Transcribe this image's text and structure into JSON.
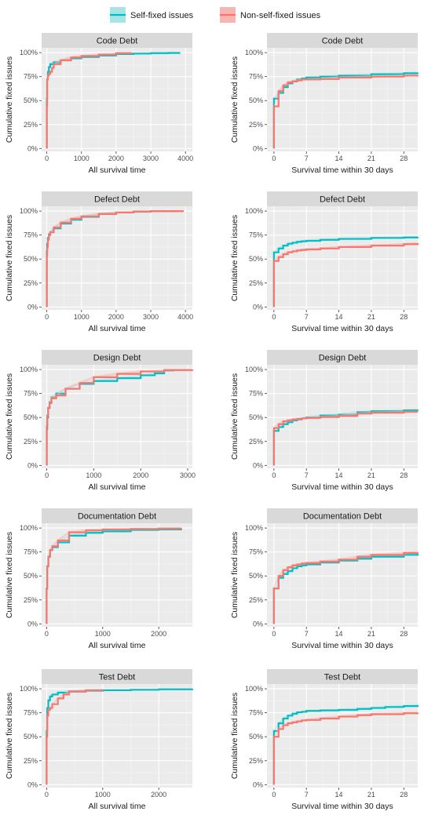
{
  "legend": {
    "entries": [
      {
        "label": "Self-fixed issues",
        "color": "#00BFC4",
        "fill": "#A6E4E6"
      },
      {
        "label": "Non-self-fixed issues",
        "color": "#F8766D",
        "fill": "#F7B6B1"
      }
    ]
  },
  "chart_data": [
    {
      "type": "line",
      "title": "Code Debt",
      "xlabel": "All survival time",
      "ylabel": "Cumulative fixed issues",
      "xlim": [
        -150,
        4200
      ],
      "xticks": [
        0,
        1000,
        2000,
        3000,
        4000
      ],
      "ylim": [
        -0.03,
        1.05
      ],
      "yticks": [
        0,
        0.25,
        0.5,
        0.75,
        1
      ],
      "ytick_labels": [
        "0%",
        "25%",
        "50%",
        "75%",
        "100%"
      ],
      "series": [
        {
          "name": "Self-fixed issues",
          "x": [
            0,
            0,
            10,
            30,
            60,
            100,
            200,
            400,
            700,
            1000,
            1500,
            2000,
            2500,
            3000,
            3500,
            3850
          ],
          "y": [
            0,
            0.52,
            0.72,
            0.8,
            0.85,
            0.88,
            0.9,
            0.92,
            0.94,
            0.955,
            0.97,
            0.985,
            0.99,
            0.995,
            0.997,
            0.997
          ]
        },
        {
          "name": "Non-self-fixed issues",
          "x": [
            0,
            0,
            10,
            30,
            60,
            100,
            150,
            200,
            400,
            700,
            1000,
            1500,
            2000,
            2450
          ],
          "y": [
            0,
            0.45,
            0.72,
            0.76,
            0.78,
            0.8,
            0.84,
            0.88,
            0.92,
            0.95,
            0.965,
            0.98,
            0.995,
            1.0
          ]
        }
      ]
    },
    {
      "type": "line",
      "title": "Code Debt",
      "xlabel": "Survival time within 30 days",
      "ylabel": "Cumulative fixed issues",
      "xlim": [
        -1.5,
        31
      ],
      "xticks": [
        0,
        7,
        14,
        21,
        28
      ],
      "ylim": [
        -0.03,
        1.05
      ],
      "yticks": [
        0,
        0.25,
        0.5,
        0.75,
        1
      ],
      "ytick_labels": [
        "0%",
        "25%",
        "50%",
        "75%",
        "100%"
      ],
      "series": [
        {
          "name": "Self-fixed issues",
          "x": [
            0,
            0,
            1,
            2,
            3,
            4,
            5,
            6,
            7,
            10,
            14,
            21,
            28,
            31
          ],
          "y": [
            0,
            0.52,
            0.58,
            0.64,
            0.68,
            0.7,
            0.72,
            0.73,
            0.74,
            0.75,
            0.76,
            0.775,
            0.785,
            0.79
          ]
        },
        {
          "name": "Non-self-fixed issues",
          "x": [
            0,
            0,
            1,
            2,
            3,
            4,
            5,
            6,
            7,
            10,
            14,
            21,
            28,
            31
          ],
          "y": [
            0,
            0.44,
            0.6,
            0.66,
            0.69,
            0.7,
            0.71,
            0.72,
            0.72,
            0.725,
            0.74,
            0.75,
            0.76,
            0.765
          ]
        }
      ]
    },
    {
      "type": "line",
      "title": "Defect Debt",
      "xlabel": "All survival time",
      "ylabel": "Cumulative fixed issues",
      "xlim": [
        -150,
        4200
      ],
      "xticks": [
        0,
        1000,
        2000,
        3000,
        4000
      ],
      "ylim": [
        -0.03,
        1.05
      ],
      "yticks": [
        0,
        0.25,
        0.5,
        0.75,
        1
      ],
      "ytick_labels": [
        "0%",
        "25%",
        "50%",
        "75%",
        "100%"
      ],
      "series": [
        {
          "name": "Self-fixed issues",
          "x": [
            0,
            0,
            10,
            30,
            60,
            100,
            200,
            400,
            700,
            1000,
            1500,
            2000,
            2500,
            3000,
            3700
          ],
          "y": [
            0,
            0.58,
            0.66,
            0.72,
            0.76,
            0.78,
            0.82,
            0.87,
            0.91,
            0.94,
            0.97,
            0.985,
            0.995,
            1.0,
            1.0
          ]
        },
        {
          "name": "Non-self-fixed issues",
          "x": [
            0,
            0,
            10,
            30,
            60,
            100,
            200,
            400,
            700,
            1000,
            1500,
            2000,
            2500,
            3000,
            3500,
            3950
          ],
          "y": [
            0,
            0.54,
            0.62,
            0.7,
            0.75,
            0.78,
            0.83,
            0.88,
            0.92,
            0.945,
            0.97,
            0.985,
            0.995,
            1.0,
            1.0,
            1.0
          ]
        }
      ]
    },
    {
      "type": "line",
      "title": "Defect Debt",
      "xlabel": "Survival time within 30 days",
      "ylabel": "Cumulative fixed issues",
      "xlim": [
        -1.5,
        31
      ],
      "xticks": [
        0,
        7,
        14,
        21,
        28
      ],
      "ylim": [
        -0.03,
        1.05
      ],
      "yticks": [
        0,
        0.25,
        0.5,
        0.75,
        1
      ],
      "ytick_labels": [
        "0%",
        "25%",
        "50%",
        "75%",
        "100%"
      ],
      "series": [
        {
          "name": "Self-fixed issues",
          "x": [
            0,
            0,
            1,
            2,
            3,
            4,
            5,
            6,
            7,
            10,
            14,
            21,
            28,
            31
          ],
          "y": [
            0,
            0.57,
            0.61,
            0.64,
            0.66,
            0.67,
            0.68,
            0.685,
            0.69,
            0.7,
            0.71,
            0.72,
            0.725,
            0.73
          ]
        },
        {
          "name": "Non-self-fixed issues",
          "x": [
            0,
            0,
            1,
            2,
            3,
            4,
            5,
            6,
            7,
            10,
            14,
            21,
            28,
            31
          ],
          "y": [
            0,
            0.48,
            0.52,
            0.55,
            0.57,
            0.58,
            0.59,
            0.595,
            0.6,
            0.61,
            0.625,
            0.64,
            0.655,
            0.665
          ]
        }
      ]
    },
    {
      "type": "line",
      "title": "Design Debt",
      "xlabel": "All survival time",
      "ylabel": "Cumulative fixed issues",
      "xlim": [
        -110,
        3100
      ],
      "xticks": [
        0,
        1000,
        2000,
        3000
      ],
      "ylim": [
        -0.03,
        1.05
      ],
      "yticks": [
        0,
        0.25,
        0.5,
        0.75,
        1
      ],
      "ytick_labels": [
        "0%",
        "25%",
        "50%",
        "75%",
        "100%"
      ],
      "series": [
        {
          "name": "Self-fixed issues",
          "x": [
            0,
            0,
            10,
            30,
            60,
            100,
            200,
            400,
            700,
            1000,
            1500,
            2000,
            2300,
            2500,
            2700
          ],
          "y": [
            0,
            0.38,
            0.5,
            0.6,
            0.66,
            0.71,
            0.75,
            0.8,
            0.85,
            0.88,
            0.91,
            0.94,
            0.96,
            0.99,
            1.0
          ]
        },
        {
          "name": "Non-self-fixed issues",
          "x": [
            0,
            0,
            10,
            30,
            60,
            100,
            200,
            400,
            700,
            1000,
            1500,
            2000,
            2500,
            3100
          ],
          "y": [
            0,
            0.41,
            0.52,
            0.6,
            0.65,
            0.7,
            0.73,
            0.8,
            0.86,
            0.92,
            0.955,
            0.98,
            0.995,
            1.0
          ]
        }
      ]
    },
    {
      "type": "line",
      "title": "Design Debt",
      "xlabel": "Survival time within 30 days",
      "ylabel": "Cumulative fixed issues",
      "xlim": [
        -1.5,
        31
      ],
      "xticks": [
        0,
        7,
        14,
        21,
        28
      ],
      "ylim": [
        -0.03,
        1.05
      ],
      "yticks": [
        0,
        0.25,
        0.5,
        0.75,
        1
      ],
      "ytick_labels": [
        "0%",
        "25%",
        "50%",
        "75%",
        "100%"
      ],
      "series": [
        {
          "name": "Self-fixed issues",
          "x": [
            0,
            0,
            1,
            2,
            3,
            4,
            5,
            6,
            7,
            10,
            14,
            18,
            21,
            28,
            31
          ],
          "y": [
            0,
            0.36,
            0.4,
            0.43,
            0.45,
            0.47,
            0.48,
            0.49,
            0.5,
            0.52,
            0.53,
            0.555,
            0.565,
            0.575,
            0.58
          ]
        },
        {
          "name": "Non-self-fixed issues",
          "x": [
            0,
            0,
            1,
            2,
            3,
            4,
            5,
            6,
            7,
            10,
            14,
            18,
            21,
            28,
            31
          ],
          "y": [
            0,
            0.39,
            0.43,
            0.46,
            0.47,
            0.48,
            0.485,
            0.49,
            0.495,
            0.505,
            0.515,
            0.54,
            0.55,
            0.56,
            0.56
          ]
        }
      ]
    },
    {
      "type": "line",
      "title": "Documentation Debt",
      "xlabel": "All survival time",
      "ylabel": "Cumulative fixed issues",
      "xlim": [
        -90,
        2600
      ],
      "xticks": [
        0,
        1000,
        2000
      ],
      "ylim": [
        -0.03,
        1.05
      ],
      "yticks": [
        0,
        0.25,
        0.5,
        0.75,
        1
      ],
      "ytick_labels": [
        "0%",
        "25%",
        "50%",
        "75%",
        "100%"
      ],
      "series": [
        {
          "name": "Self-fixed issues",
          "x": [
            0,
            0,
            10,
            30,
            60,
            100,
            200,
            400,
            700,
            1000,
            1500,
            2000,
            2400
          ],
          "y": [
            0,
            0.37,
            0.6,
            0.7,
            0.77,
            0.8,
            0.85,
            0.92,
            0.95,
            0.965,
            0.98,
            0.985,
            0.99
          ]
        },
        {
          "name": "Non-self-fixed issues",
          "x": [
            0,
            0,
            10,
            30,
            60,
            100,
            200,
            400,
            700,
            1000,
            1500,
            2000,
            2400
          ],
          "y": [
            0,
            0.37,
            0.6,
            0.7,
            0.77,
            0.81,
            0.87,
            0.955,
            0.975,
            0.985,
            0.99,
            0.995,
            1.0
          ]
        }
      ]
    },
    {
      "type": "line",
      "title": "Documentation Debt",
      "xlabel": "Survival time within 30 days",
      "ylabel": "Cumulative fixed issues",
      "xlim": [
        -1.5,
        31
      ],
      "xticks": [
        0,
        7,
        14,
        21,
        28
      ],
      "ylim": [
        -0.03,
        1.05
      ],
      "yticks": [
        0,
        0.25,
        0.5,
        0.75,
        1
      ],
      "ytick_labels": [
        "0%",
        "25%",
        "50%",
        "75%",
        "100%"
      ],
      "series": [
        {
          "name": "Self-fixed issues",
          "x": [
            0,
            0,
            1,
            2,
            3,
            4,
            5,
            6,
            7,
            10,
            14,
            18,
            21,
            28,
            31
          ],
          "y": [
            0,
            0.37,
            0.48,
            0.52,
            0.55,
            0.58,
            0.6,
            0.61,
            0.62,
            0.64,
            0.66,
            0.68,
            0.7,
            0.72,
            0.73
          ]
        },
        {
          "name": "Non-self-fixed issues",
          "x": [
            0,
            0,
            1,
            2,
            3,
            4,
            5,
            6,
            7,
            10,
            14,
            18,
            21,
            28,
            31
          ],
          "y": [
            0,
            0.37,
            0.5,
            0.56,
            0.59,
            0.61,
            0.62,
            0.63,
            0.635,
            0.65,
            0.67,
            0.7,
            0.72,
            0.74,
            0.745
          ]
        }
      ]
    },
    {
      "type": "line",
      "title": "Test Debt",
      "xlabel": "All survival time",
      "ylabel": "Cumulative fixed issues",
      "xlim": [
        -90,
        2600
      ],
      "xticks": [
        0,
        1000,
        2000
      ],
      "ylim": [
        -0.03,
        1.05
      ],
      "yticks": [
        0,
        0.25,
        0.5,
        0.75,
        1
      ],
      "ytick_labels": [
        "0%",
        "25%",
        "50%",
        "75%",
        "100%"
      ],
      "series": [
        {
          "name": "Self-fixed issues",
          "x": [
            0,
            0,
            10,
            30,
            60,
            100,
            200,
            400,
            700,
            1000,
            1500,
            2000,
            2600
          ],
          "y": [
            0,
            0.56,
            0.8,
            0.88,
            0.92,
            0.94,
            0.96,
            0.975,
            0.98,
            0.985,
            0.99,
            0.995,
            1.0
          ]
        },
        {
          "name": "Non-self-fixed issues",
          "x": [
            0,
            0,
            10,
            30,
            60,
            100,
            200,
            300,
            400,
            700,
            1000
          ],
          "y": [
            0,
            0.5,
            0.72,
            0.78,
            0.8,
            0.84,
            0.9,
            0.94,
            0.97,
            0.985,
            0.99
          ]
        }
      ]
    },
    {
      "type": "line",
      "title": "Test Debt",
      "xlabel": "Survival time within 30 days",
      "ylabel": "Cumulative fixed issues",
      "xlim": [
        -1.5,
        31
      ],
      "xticks": [
        0,
        7,
        14,
        21,
        28
      ],
      "ylim": [
        -0.03,
        1.05
      ],
      "yticks": [
        0,
        0.25,
        0.5,
        0.75,
        1
      ],
      "ytick_labels": [
        "0%",
        "25%",
        "50%",
        "75%",
        "100%"
      ],
      "series": [
        {
          "name": "Self-fixed issues",
          "x": [
            0,
            0,
            1,
            2,
            3,
            4,
            5,
            6,
            7,
            10,
            14,
            18,
            21,
            24,
            28,
            31
          ],
          "y": [
            0,
            0.56,
            0.64,
            0.69,
            0.72,
            0.74,
            0.755,
            0.76,
            0.77,
            0.775,
            0.78,
            0.79,
            0.8,
            0.81,
            0.82,
            0.83
          ]
        },
        {
          "name": "Non-self-fixed issues",
          "x": [
            0,
            0,
            1,
            2,
            3,
            4,
            5,
            6,
            7,
            10,
            14,
            18,
            21,
            28,
            31
          ],
          "y": [
            0,
            0.5,
            0.58,
            0.62,
            0.64,
            0.65,
            0.66,
            0.67,
            0.675,
            0.69,
            0.71,
            0.725,
            0.735,
            0.745,
            0.75
          ]
        }
      ]
    }
  ]
}
